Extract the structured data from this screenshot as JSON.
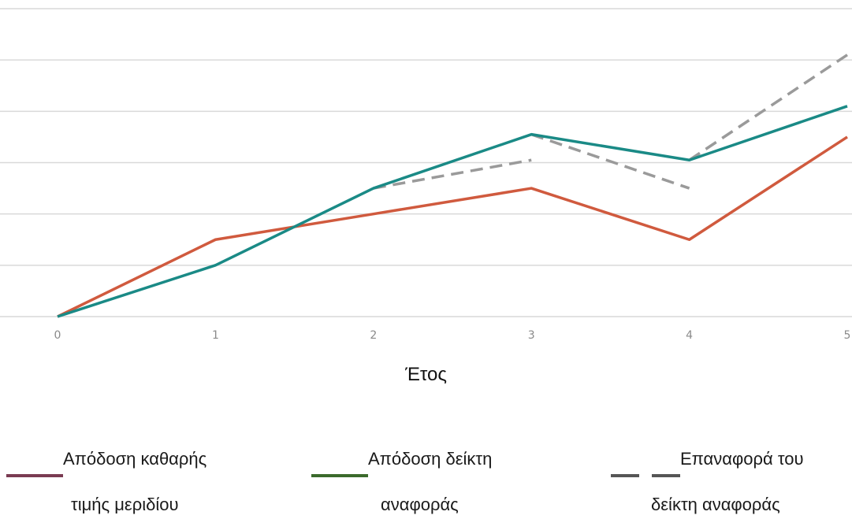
{
  "chart_data": {
    "type": "line",
    "xlabel": "Έτος",
    "ylabel": "",
    "title": "",
    "x": [
      0,
      1,
      2,
      3,
      4,
      5
    ],
    "x_tick_labels": [
      "0",
      "1",
      "2",
      "3",
      "4",
      "5"
    ],
    "ylim": [
      0,
      6
    ],
    "y_tick_labels_visible": false,
    "grid": true,
    "legend_position": "bottom",
    "series": [
      {
        "name": "Απόδοση καθαρής τιμής μεριδίου",
        "legend_line1": "Απόδοση καθαρής",
        "legend_line2": "τιμής μεριδίου",
        "color": "#d05a3e",
        "legend_color": "#7a3b52",
        "style": "solid",
        "points": [
          [
            0,
            0
          ],
          [
            1,
            1.5
          ],
          [
            2,
            2.0
          ],
          [
            3,
            2.5
          ],
          [
            4,
            1.5
          ],
          [
            5,
            3.5
          ]
        ]
      },
      {
        "name": "Απόδοση δείκτη αναφοράς",
        "legend_line1": "Απόδοση δείκτη",
        "legend_line2": "αναφοράς",
        "color": "#1a8a86",
        "legend_color": "#3b6a2c",
        "style": "solid",
        "points": [
          [
            0,
            0
          ],
          [
            1,
            1.0
          ],
          [
            2,
            2.5
          ],
          [
            3,
            3.55
          ],
          [
            4,
            3.05
          ],
          [
            5,
            4.1
          ]
        ]
      },
      {
        "name": "Επαναφορά του δείκτη αναφοράς",
        "legend_line1": "Επαναφορά του",
        "legend_line2": "δείκτη αναφοράς",
        "color": "#9a9a9a",
        "legend_color": "#555555",
        "style": "dashed",
        "segments": [
          [
            [
              2,
              2.5
            ],
            [
              3,
              3.05
            ]
          ],
          [
            [
              3,
              3.55
            ],
            [
              4,
              2.5
            ]
          ],
          [
            [
              4,
              3.05
            ],
            [
              5,
              5.1
            ]
          ]
        ]
      }
    ]
  }
}
